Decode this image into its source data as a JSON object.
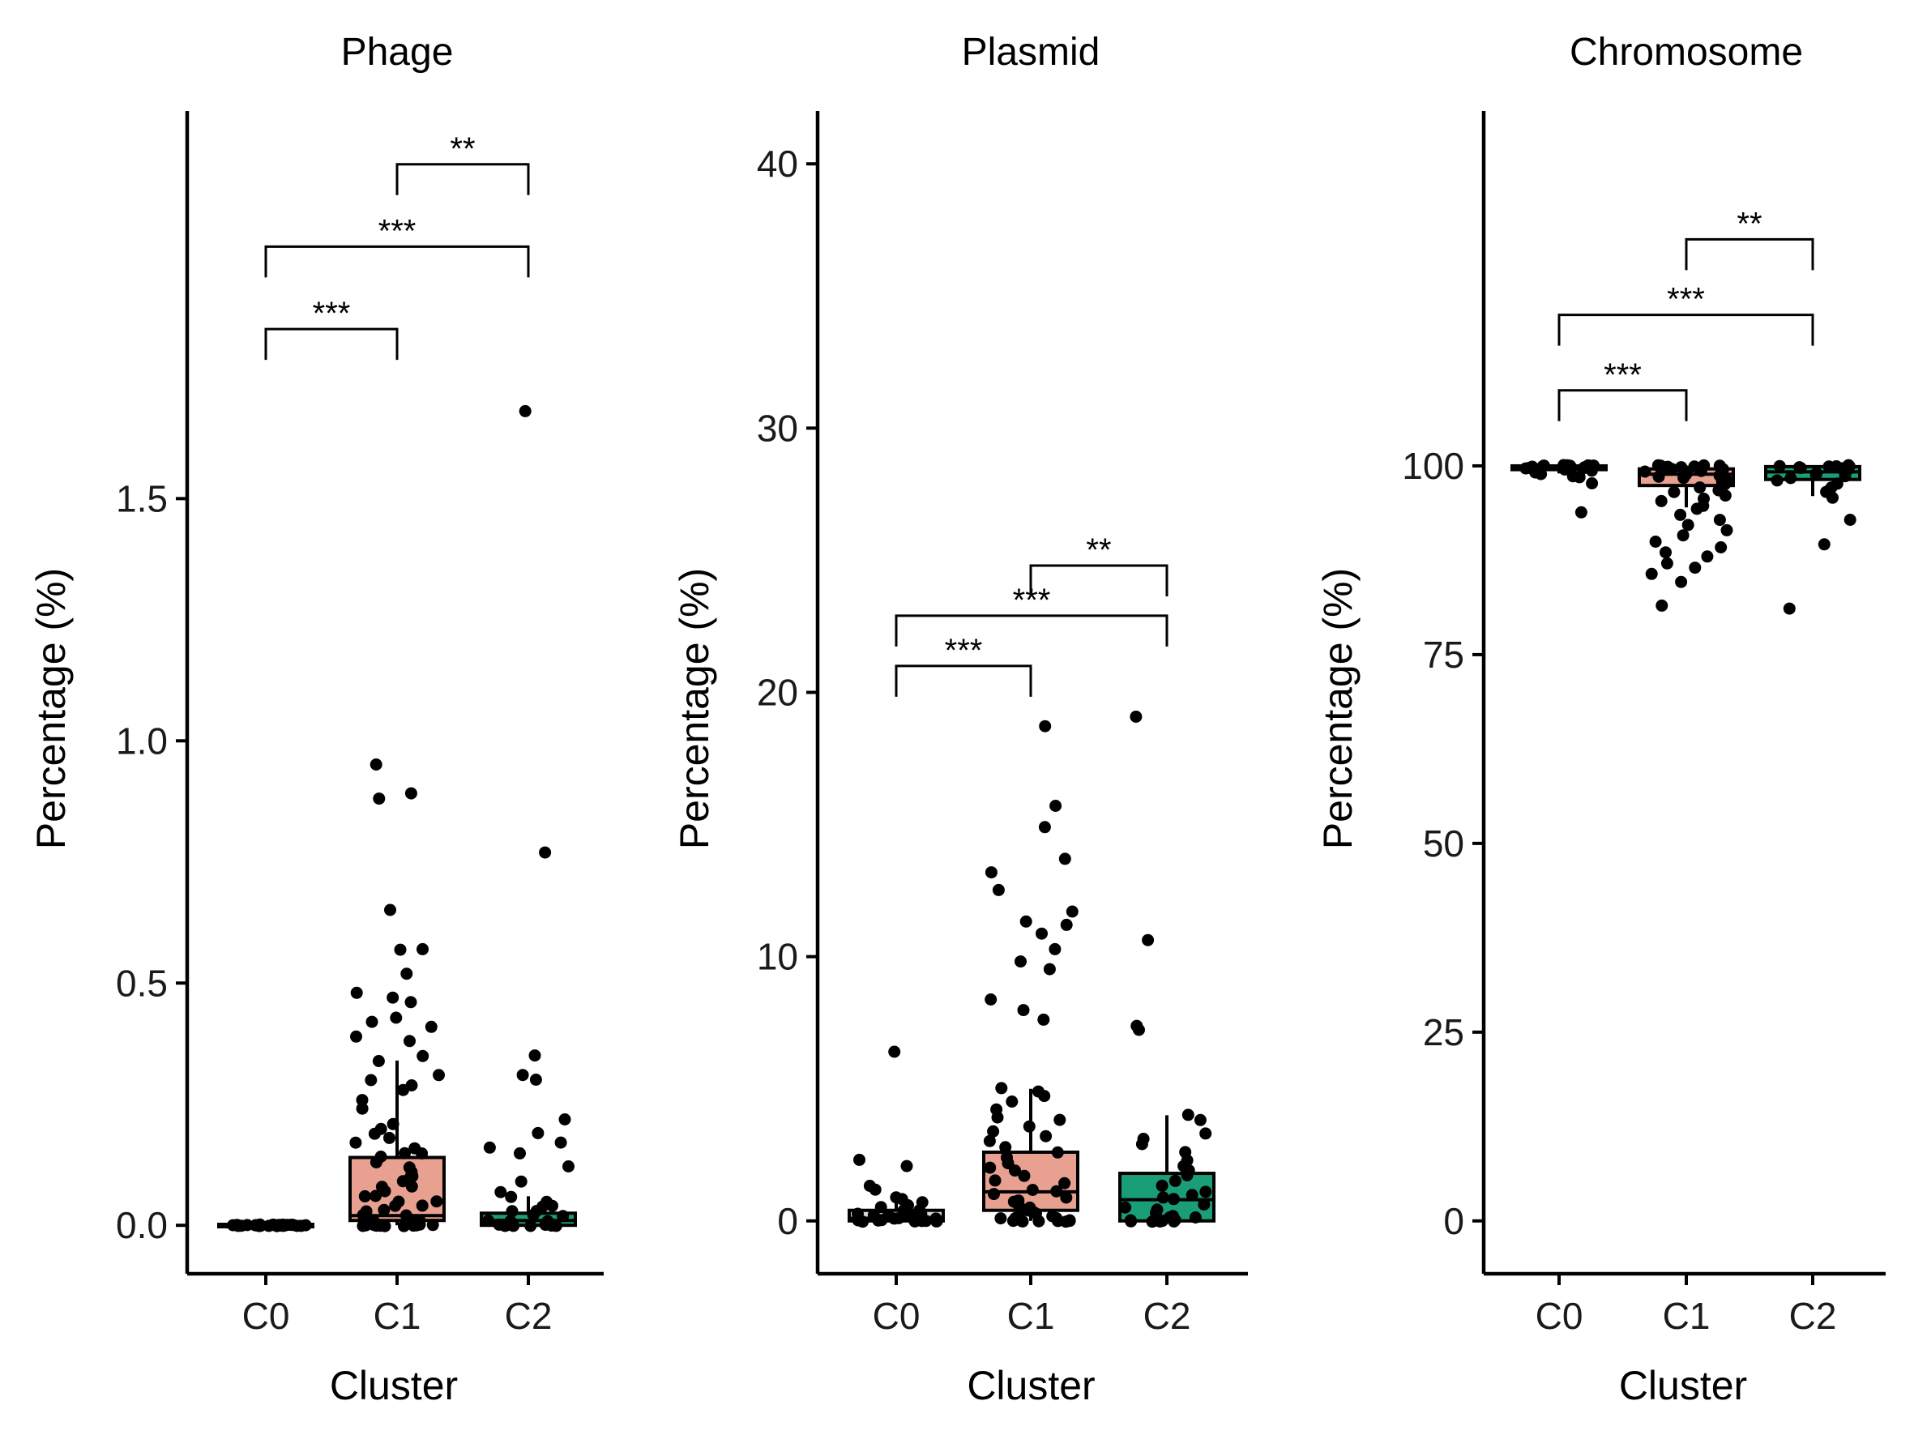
{
  "chart_data": [
    {
      "type": "box",
      "title": "Phage",
      "xlabel": "Cluster",
      "ylabel": "Percentage (%)",
      "categories": [
        "C0",
        "C1",
        "C2"
      ],
      "ylim": [
        -0.1,
        2.3
      ],
      "yticks": [
        0.0,
        0.5,
        1.0,
        1.5
      ],
      "ytick_labels": [
        "0.0",
        "0.5",
        "1.0",
        "1.5"
      ],
      "box_colors": [
        "#d9d9d9",
        "#e8a090",
        "#1a9e78"
      ],
      "boxes": [
        {
          "category": "C0",
          "q1": 0.0,
          "median": 0.0,
          "q3": 0.002,
          "whisker_low": 0.0,
          "whisker_high": 0.004
        },
        {
          "category": "C1",
          "q1": 0.01,
          "median": 0.02,
          "q3": 0.14,
          "whisker_low": 0.0,
          "whisker_high": 0.34
        },
        {
          "category": "C2",
          "q1": 0.0,
          "median": 0.01,
          "q3": 0.025,
          "whisker_low": 0.0,
          "whisker_high": 0.06
        }
      ],
      "points": [
        {
          "category": "C0",
          "values": [
            0,
            0,
            0,
            0,
            0,
            0,
            0,
            0,
            0,
            0,
            0,
            0,
            0,
            0,
            0,
            0,
            0,
            0,
            0,
            0,
            0,
            0,
            0,
            0,
            0,
            0,
            0,
            0,
            0,
            0
          ]
        },
        {
          "category": "C1",
          "values": [
            0.95,
            0.89,
            0.88,
            0.65,
            0.57,
            0.57,
            0.52,
            0.48,
            0.47,
            0.46,
            0.43,
            0.42,
            0.41,
            0.39,
            0.38,
            0.35,
            0.34,
            0.31,
            0.3,
            0.29,
            0.28,
            0.26,
            0.24,
            0.21,
            0.2,
            0.19,
            0.18,
            0.17,
            0.16,
            0.15,
            0.15,
            0.14,
            0.13,
            0.12,
            0.11,
            0.1,
            0.1,
            0.09,
            0.08,
            0.08,
            0.07,
            0.06,
            0.06,
            0.05,
            0.05,
            0.04,
            0.04,
            0.03,
            0.03,
            0.02,
            0.02,
            0.02,
            0.01,
            0.01,
            0.01,
            0.0,
            0.0,
            0.0,
            0.0,
            0.0,
            0.0,
            0.0,
            0.0,
            0.0,
            0.0,
            0.0,
            0.0,
            0.0
          ]
        },
        {
          "category": "C2",
          "values": [
            1.68,
            0.77,
            0.35,
            0.31,
            0.3,
            0.22,
            0.19,
            0.17,
            0.16,
            0.15,
            0.12,
            0.09,
            0.07,
            0.06,
            0.05,
            0.04,
            0.04,
            0.03,
            0.03,
            0.02,
            0.02,
            0.01,
            0.01,
            0.01,
            0.0,
            0.0,
            0.0,
            0.0,
            0.0,
            0.0,
            0.0,
            0.0,
            0.0,
            0.0,
            0.0
          ]
        }
      ],
      "significance": [
        {
          "from": "C0",
          "to": "C1",
          "y": 1.85,
          "label": "***"
        },
        {
          "from": "C0",
          "to": "C2",
          "y": 2.02,
          "label": "***"
        },
        {
          "from": "C1",
          "to": "C2",
          "y": 2.19,
          "label": "**"
        }
      ]
    },
    {
      "type": "box",
      "title": "Plasmid",
      "xlabel": "Cluster",
      "ylabel": "Percentage (%)",
      "categories": [
        "C0",
        "C1",
        "C2"
      ],
      "ylim": [
        -2,
        42
      ],
      "yticks": [
        0,
        10,
        20,
        30,
        40
      ],
      "ytick_labels": [
        "0",
        "10",
        "20",
        "30",
        "40"
      ],
      "box_colors": [
        "#d9d9d9",
        "#e8a090",
        "#1a9e78"
      ],
      "boxes": [
        {
          "category": "C0",
          "q1": 0.0,
          "median": 0.1,
          "q3": 0.4,
          "whisker_low": 0.0,
          "whisker_high": 0.9
        },
        {
          "category": "C1",
          "q1": 0.4,
          "median": 1.1,
          "q3": 2.6,
          "whisker_low": 0.0,
          "whisker_high": 5.0
        },
        {
          "category": "C2",
          "q1": 0.0,
          "median": 0.8,
          "q3": 1.8,
          "whisker_low": 0.0,
          "whisker_high": 4.0
        }
      ],
      "points": [
        {
          "category": "C0",
          "values": [
            6.4,
            2.3,
            2.1,
            1.3,
            1.2,
            0.9,
            0.8,
            0.7,
            0.6,
            0.5,
            0.4,
            0.4,
            0.3,
            0.3,
            0.2,
            0.2,
            0.2,
            0.1,
            0.1,
            0.1,
            0.1,
            0.0,
            0.0,
            0.0,
            0.0,
            0.0,
            0.0,
            0.0,
            0.0,
            0.0
          ]
        },
        {
          "category": "C1",
          "values": [
            18.7,
            15.7,
            14.9,
            13.7,
            13.2,
            12.5,
            11.7,
            11.3,
            11.2,
            10.9,
            10.3,
            9.8,
            9.5,
            8.4,
            8.0,
            7.6,
            5.0,
            4.9,
            4.7,
            4.5,
            4.2,
            3.9,
            3.8,
            3.6,
            3.4,
            3.2,
            3.0,
            2.8,
            2.6,
            2.4,
            2.2,
            2.0,
            1.9,
            1.7,
            1.5,
            1.4,
            1.2,
            1.1,
            1.0,
            0.9,
            0.8,
            0.7,
            0.6,
            0.5,
            0.4,
            0.3,
            0.3,
            0.2,
            0.2,
            0.1,
            0.1,
            0.1,
            0.0,
            0.0,
            0.0,
            0.0,
            0.0,
            0.0,
            0.0,
            0.0
          ]
        },
        {
          "category": "C2",
          "values": [
            19.1,
            10.6,
            7.4,
            7.2,
            4.0,
            3.8,
            3.3,
            3.1,
            2.9,
            2.6,
            2.3,
            2.1,
            1.9,
            1.7,
            1.5,
            1.3,
            1.1,
            1.0,
            0.9,
            0.8,
            0.6,
            0.5,
            0.4,
            0.3,
            0.2,
            0.1,
            0.1,
            0.0,
            0.0,
            0.0,
            0.0,
            0.0,
            0.0,
            0.0,
            0.0
          ]
        }
      ],
      "significance": [
        {
          "from": "C0",
          "to": "C1",
          "y": 21.0,
          "label": "***"
        },
        {
          "from": "C0",
          "to": "C2",
          "y": 22.9,
          "label": "***"
        },
        {
          "from": "C1",
          "to": "C2",
          "y": 24.8,
          "label": "**"
        }
      ]
    },
    {
      "type": "box",
      "title": "Chromosome",
      "xlabel": "Cluster",
      "ylabel": "Percentage (%)",
      "categories": [
        "C0",
        "C1",
        "C2"
      ],
      "ylim": [
        -7,
        147
      ],
      "yticks": [
        0,
        25,
        50,
        75,
        100
      ],
      "ytick_labels": [
        "0",
        "25",
        "50",
        "75",
        "100"
      ],
      "box_colors": [
        "#d9d9d9",
        "#e8a090",
        "#1a9e78"
      ],
      "boxes": [
        {
          "category": "C0",
          "q1": 99.5,
          "median": 99.9,
          "q3": 100.0,
          "whisker_low": 99.0,
          "whisker_high": 100.0
        },
        {
          "category": "C1",
          "q1": 97.4,
          "median": 98.9,
          "q3": 99.6,
          "whisker_low": 94.5,
          "whisker_high": 100.0
        },
        {
          "category": "C2",
          "q1": 98.2,
          "median": 99.2,
          "q3": 99.9,
          "whisker_low": 96.0,
          "whisker_high": 100.0
        }
      ],
      "points": [
        {
          "category": "C0",
          "values": [
            100,
            100,
            100,
            100,
            100,
            100,
            100,
            99.9,
            99.9,
            99.8,
            99.8,
            99.7,
            99.6,
            99.5,
            99.4,
            99.2,
            99.0,
            98.7,
            98.4,
            97.8,
            93.8
          ]
        },
        {
          "category": "C1",
          "values": [
            100,
            100,
            100,
            100,
            99.9,
            99.9,
            99.8,
            99.7,
            99.6,
            99.5,
            99.4,
            99.3,
            99.2,
            99.0,
            98.8,
            98.6,
            98.4,
            98.1,
            97.8,
            97.5,
            97.2,
            96.8,
            96.5,
            96.1,
            95.7,
            95.3,
            94.8,
            94.3,
            93.6,
            92.9,
            92.1,
            91.5,
            90.8,
            90.0,
            89.3,
            88.6,
            87.9,
            87.1,
            86.5,
            85.7,
            84.6,
            81.5
          ]
        },
        {
          "category": "C2",
          "values": [
            100,
            100,
            100,
            100,
            99.9,
            99.8,
            99.7,
            99.6,
            99.5,
            99.3,
            99.1,
            98.9,
            98.6,
            98.3,
            98.0,
            97.6,
            97.1,
            96.5,
            95.8,
            92.8,
            89.6,
            81.0
          ]
        }
      ],
      "significance": [
        {
          "from": "C0",
          "to": "C1",
          "y": 110,
          "label": "***"
        },
        {
          "from": "C0",
          "to": "C2",
          "y": 120,
          "label": "***"
        },
        {
          "from": "C1",
          "to": "C2",
          "y": 130,
          "label": "**"
        }
      ]
    }
  ]
}
